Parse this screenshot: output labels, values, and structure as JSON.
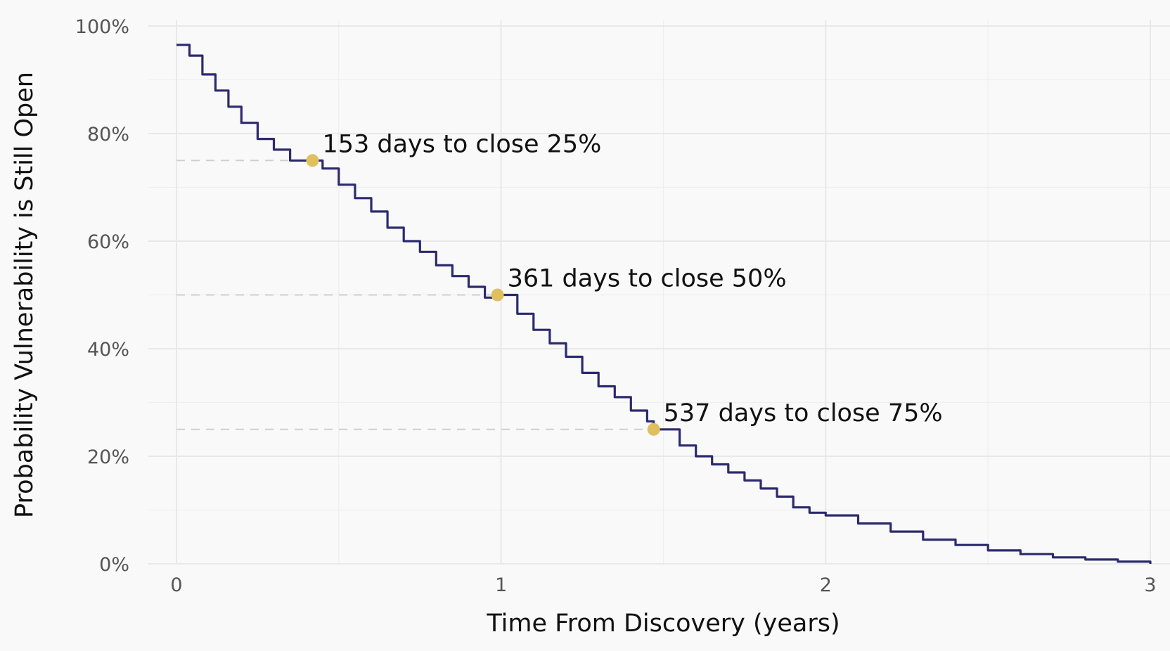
{
  "chart_data": {
    "type": "line",
    "title": "",
    "xlabel": "Time From Discovery (years)",
    "ylabel": "Probability Vulnerability is Still Open",
    "xlim": [
      0,
      3
    ],
    "ylim": [
      0,
      1
    ],
    "x_ticks": [
      {
        "value": 0,
        "label": "0"
      },
      {
        "value": 1,
        "label": "1"
      },
      {
        "value": 2,
        "label": "2"
      },
      {
        "value": 3,
        "label": "3"
      }
    ],
    "y_ticks": [
      {
        "value": 0,
        "label": "0%"
      },
      {
        "value": 0.2,
        "label": "20%"
      },
      {
        "value": 0.4,
        "label": "40%"
      },
      {
        "value": 0.6,
        "label": "60%"
      },
      {
        "value": 0.8,
        "label": "80%"
      },
      {
        "value": 1.0,
        "label": "100%"
      }
    ],
    "grid": true,
    "line_color": "#2b2a6e",
    "marker_color": "#e0bf5f",
    "series": [
      {
        "x": [
          0,
          0.04,
          0.08,
          0.12,
          0.16,
          0.2,
          0.25,
          0.3,
          0.35,
          0.419,
          0.45,
          0.5,
          0.55,
          0.6,
          0.65,
          0.7,
          0.75,
          0.8,
          0.85,
          0.9,
          0.95,
          0.989,
          1.05,
          1.1,
          1.15,
          1.2,
          1.25,
          1.3,
          1.35,
          1.4,
          1.45,
          1.47,
          1.55,
          1.6,
          1.65,
          1.7,
          1.75,
          1.8,
          1.85,
          1.9,
          1.95,
          2.0,
          2.1,
          2.2,
          2.3,
          2.4,
          2.5,
          2.6,
          2.7,
          2.8,
          2.9,
          3.0
        ],
        "y": [
          0.965,
          0.945,
          0.91,
          0.88,
          0.85,
          0.82,
          0.79,
          0.77,
          0.75,
          0.75,
          0.735,
          0.705,
          0.68,
          0.655,
          0.625,
          0.6,
          0.58,
          0.555,
          0.535,
          0.515,
          0.495,
          0.5,
          0.465,
          0.435,
          0.41,
          0.385,
          0.355,
          0.33,
          0.31,
          0.285,
          0.265,
          0.25,
          0.22,
          0.2,
          0.185,
          0.17,
          0.155,
          0.14,
          0.125,
          0.105,
          0.095,
          0.09,
          0.075,
          0.06,
          0.045,
          0.035,
          0.025,
          0.018,
          0.012,
          0.008,
          0.004,
          0.0
        ]
      }
    ],
    "annotations": [
      {
        "x": 0.419,
        "y": 0.75,
        "label": "153 days to close 25%"
      },
      {
        "x": 0.989,
        "y": 0.5,
        "label": "361 days to close 50%"
      },
      {
        "x": 1.47,
        "y": 0.25,
        "label": "537 days to close 75%"
      }
    ]
  }
}
